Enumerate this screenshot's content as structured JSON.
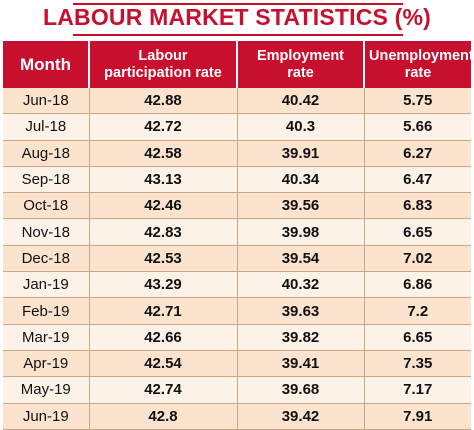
{
  "title": "LABOUR MARKET STATISTICS (%)",
  "chart_data": {
    "type": "table",
    "title": "LABOUR MARKET STATISTICS (%)",
    "columns": [
      "Month",
      "Labour participation rate",
      "Employment rate",
      "Unemployment rate"
    ],
    "rows": [
      [
        "Jun-18",
        "42.88",
        "40.42",
        "5.75"
      ],
      [
        "Jul-18",
        "42.72",
        "40.3",
        "5.66"
      ],
      [
        "Aug-18",
        "42.58",
        "39.91",
        "6.27"
      ],
      [
        "Sep-18",
        "43.13",
        "40.34",
        "6.47"
      ],
      [
        "Oct-18",
        "42.46",
        "39.56",
        "6.83"
      ],
      [
        "Nov-18",
        "42.83",
        "39.98",
        "6.65"
      ],
      [
        "Dec-18",
        "42.53",
        "39.54",
        "7.02"
      ],
      [
        "Jan-19",
        "43.29",
        "40.32",
        "6.86"
      ],
      [
        "Feb-19",
        "42.71",
        "39.63",
        "7.2"
      ],
      [
        "Mar-19",
        "42.66",
        "39.82",
        "6.65"
      ],
      [
        "Apr-19",
        "42.54",
        "39.41",
        "7.35"
      ],
      [
        "May-19",
        "42.74",
        "39.68",
        "7.17"
      ],
      [
        "Jun-19",
        "42.8",
        "39.42",
        "7.91"
      ]
    ]
  },
  "colors": {
    "header_background": "#c8102e",
    "title_color": "#c8102e",
    "row_odd": "#fbe3cd",
    "row_even": "#fdf2e8"
  }
}
